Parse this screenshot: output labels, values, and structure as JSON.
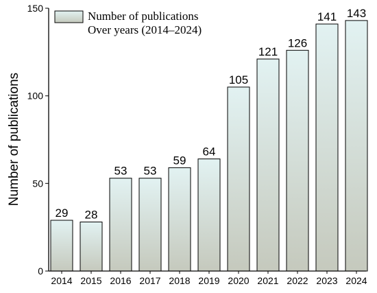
{
  "chart_data": {
    "type": "bar",
    "title": "",
    "xlabel": "",
    "ylabel": "Number of publications",
    "categories": [
      "2014",
      "2015",
      "2016",
      "2017",
      "2018",
      "2019",
      "2020",
      "2021",
      "2022",
      "2023",
      "2024"
    ],
    "values": [
      29,
      28,
      53,
      53,
      59,
      64,
      105,
      121,
      126,
      141,
      143
    ],
    "ylim": [
      0,
      150
    ],
    "yticks": [
      0,
      50,
      100,
      150
    ],
    "grid": false,
    "legend": {
      "position": "top-left",
      "entries": [
        "Number of publications",
        "Over years (2014–2024)"
      ]
    },
    "colors": {
      "bar_top": "#e2f2f2",
      "bar_bottom": "#c5c9bd",
      "bar_stroke": "#000000"
    }
  }
}
